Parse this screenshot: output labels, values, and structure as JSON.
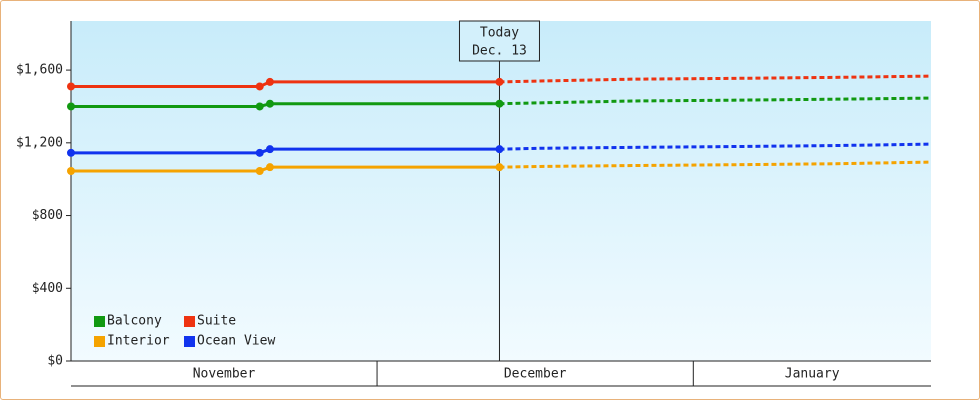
{
  "chart_data": {
    "type": "line",
    "x": [
      0,
      18.5,
      19.5,
      42,
      46,
      55,
      66,
      75,
      84.3
    ],
    "xlim": [
      0,
      84.3
    ],
    "xticks": [
      {
        "value": 0,
        "label": "November"
      },
      {
        "value": 30,
        "label": "December"
      },
      {
        "value": 61,
        "label": "January"
      }
    ],
    "ylim": [
      0,
      1870
    ],
    "yticks": [
      {
        "value": 0,
        "label": "$0"
      },
      {
        "value": 400,
        "label": "$400"
      },
      {
        "value": 800,
        "label": "$800"
      },
      {
        "value": 1200,
        "label": "$1,200"
      },
      {
        "value": 1600,
        "label": "$1,600"
      }
    ],
    "annotation": {
      "x": 42,
      "lines": [
        "Today",
        "Dec. 13"
      ]
    },
    "series": [
      {
        "name": "Balcony",
        "color": "#119911",
        "values": [
          1400,
          1400,
          1415,
          1415,
          1420,
          1430,
          1435,
          1440,
          1446
        ]
      },
      {
        "name": "Suite",
        "color": "#ee3311",
        "values": [
          1510,
          1510,
          1535,
          1535,
          1540,
          1550,
          1555,
          1560,
          1567
        ]
      },
      {
        "name": "Interior",
        "color": "#f5a300",
        "values": [
          1045,
          1045,
          1066,
          1066,
          1070,
          1075,
          1080,
          1085,
          1094
        ]
      },
      {
        "name": "Ocean View",
        "color": "#1133ee",
        "values": [
          1145,
          1145,
          1165,
          1165,
          1170,
          1175,
          1180,
          1185,
          1193
        ]
      }
    ]
  }
}
